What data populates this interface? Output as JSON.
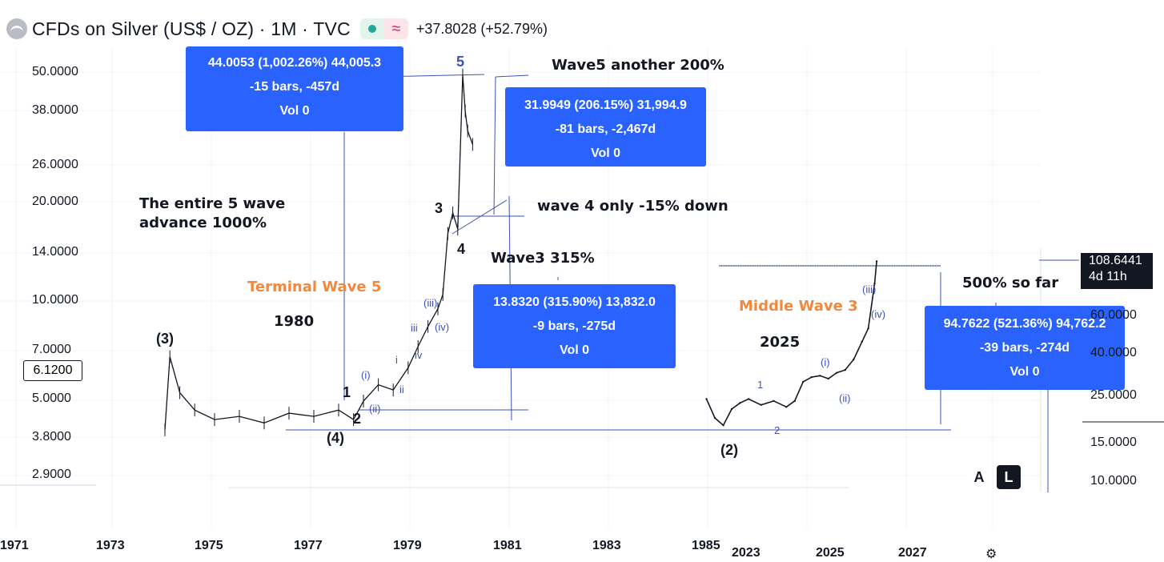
{
  "header": {
    "symbol": "CFDs on Silver (US$ / OZ) · 1M · TVC",
    "change": "+37.8028 (+52.79%)",
    "status_icon": "market-open-dot",
    "status_icon2": "wave-icon",
    "colors": {
      "accent": "#2962ff",
      "orange_label": "#f0883e",
      "wave_label": "#3f51b5"
    }
  },
  "measure_boxes": [
    {
      "line1": "44.0053 (1,002.26%) 44,005.3",
      "line2": "-15 bars, -457d",
      "line3": "Vol 0"
    },
    {
      "line1": "31.9949 (206.15%) 31,994.9",
      "line2": "-81 bars, -2,467d",
      "line3": "Vol 0"
    },
    {
      "line1": "13.8320 (315.90%) 13,832.0",
      "line2": "-9 bars, -275d",
      "line3": "Vol 0"
    },
    {
      "line1": "94.7622 (521.36%) 94,762.2",
      "line2": "-39 bars, -274d",
      "line3": "Vol 0"
    }
  ],
  "annotations": {
    "wave5_another": "Wave5 another 200%",
    "entire_line1": "The entire 5 wave",
    "entire_line2": "advance 1000%",
    "wave4_only": "wave 4 only -15% down",
    "wave3_315": "Wave3  315%",
    "terminal_wave5": "Terminal Wave 5",
    "year_1980": "1980",
    "middle_wave3": "Middle Wave 3",
    "year_2025": "2025",
    "so_far": "500% so far"
  },
  "wave_labels": {
    "big_3": "(3)",
    "big_4": "(4)",
    "big_2": "(2)",
    "w1": "1",
    "w2": "2",
    "w3": "3",
    "w4": "4",
    "w5": "5",
    "i_paren": "(i)",
    "ii_paren": "(ii)",
    "iii_paren": "(iii)",
    "iv_paren": "(iv)",
    "i": "i",
    "ii": "ii",
    "iii": "iii",
    "iv": "iv",
    "r1": "1",
    "r2": "2",
    "ri": "(i)",
    "rii": "(ii)",
    "riii": "(iii)",
    "riv": "(iv)"
  },
  "price_tag": {
    "price": "108.6441",
    "countdown": "4d 11h"
  },
  "current_price": "6.1200",
  "buttons": {
    "auto": "A",
    "log": "L"
  },
  "chart_data": {
    "type": "line",
    "title": "CFDs on Silver (US$ / OZ) · 1M · TVC",
    "scale": "log",
    "grid": true,
    "left_panel": {
      "y_ticks": [
        "50.0000",
        "38.0000",
        "26.0000",
        "20.0000",
        "14.0000",
        "10.0000",
        "7.0000",
        "5.0000",
        "3.8000",
        "2.9000"
      ],
      "x_ticks": [
        "1971",
        "1973",
        "1975",
        "1977",
        "1979",
        "1981",
        "1983",
        "1985"
      ],
      "series": [
        {
          "x": [
            1974.0,
            1974.1,
            1974.3,
            1974.6,
            1975.0,
            1975.5,
            1976.0,
            1976.5,
            1977.0,
            1977.5,
            1977.8,
            1978.0,
            1978.3,
            1978.6,
            1978.9,
            1979.1,
            1979.3,
            1979.5,
            1979.6,
            1979.7,
            1979.8,
            1979.9,
            1980.0,
            1980.05,
            1980.1,
            1980.2
          ],
          "values": [
            4.0,
            6.7,
            5.2,
            4.6,
            4.3,
            4.4,
            4.2,
            4.5,
            4.4,
            4.6,
            4.3,
            4.9,
            5.5,
            5.3,
            6.2,
            7.2,
            8.3,
            9.4,
            10.4,
            16.0,
            18.5,
            16.5,
            49.0,
            38.0,
            33.0,
            30.0
          ]
        }
      ]
    },
    "right_panel": {
      "y_ticks": [
        "60.0000",
        "40.0000",
        "25.0000",
        "15.0000",
        "10.0000"
      ],
      "x_ticks": [
        "2023",
        "2025",
        "2027"
      ],
      "series": [
        {
          "x": [
            2022.0,
            2022.2,
            2022.4,
            2022.6,
            2022.8,
            2023.0,
            2023.3,
            2023.6,
            2023.9,
            2024.1,
            2024.3,
            2024.5,
            2024.7,
            2024.9,
            2025.1,
            2025.3,
            2025.5,
            2025.7,
            2025.85,
            2026.0,
            2026.05
          ],
          "values": [
            24.0,
            19.5,
            18.0,
            21.5,
            23.0,
            24.0,
            22.5,
            23.5,
            22.0,
            23.5,
            29.0,
            30.5,
            31.0,
            30.0,
            32.0,
            33.0,
            37.0,
            45.0,
            52.0,
            85.0,
            108.6
          ]
        }
      ]
    }
  }
}
